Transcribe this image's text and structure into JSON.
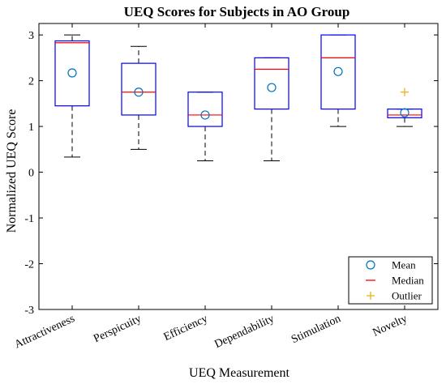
{
  "chart_data": {
    "type": "box",
    "title": "UEQ Scores for Subjects in AO Group",
    "xlabel": "UEQ Measurement",
    "ylabel": "Normalized UEQ Score",
    "ylim": [
      -3,
      3.25
    ],
    "yticks": [
      "-3",
      "-2",
      "-1",
      "0",
      "1",
      "2",
      "3"
    ],
    "ytick_values": [
      -3,
      -2,
      -1,
      0,
      1,
      2,
      3
    ],
    "categories": [
      "Attractiveness",
      "Perspicuity",
      "Efficiency",
      "Dependability",
      "Stimulation",
      "Novelty"
    ],
    "boxes": [
      {
        "category": "Attractiveness",
        "whisker_low": 0.33,
        "q1": 1.45,
        "median": 2.83,
        "q3": 2.87,
        "whisker_high": 3.0,
        "mean": 2.17,
        "outliers": []
      },
      {
        "category": "Perspicuity",
        "whisker_low": 0.5,
        "q1": 1.25,
        "median": 1.75,
        "q3": 2.38,
        "whisker_high": 2.75,
        "mean": 1.75,
        "outliers": []
      },
      {
        "category": "Efficiency",
        "whisker_low": 0.25,
        "q1": 1.0,
        "median": 1.25,
        "q3": 1.75,
        "whisker_high": 1.75,
        "mean": 1.25,
        "outliers": []
      },
      {
        "category": "Dependability",
        "whisker_low": 0.25,
        "q1": 1.38,
        "median": 2.25,
        "q3": 2.5,
        "whisker_high": 2.5,
        "mean": 1.85,
        "outliers": []
      },
      {
        "category": "Stimulation",
        "whisker_low": 1.0,
        "q1": 1.38,
        "median": 2.5,
        "q3": 3.0,
        "whisker_high": 3.0,
        "mean": 2.2,
        "outliers": []
      },
      {
        "category": "Novelty",
        "whisker_low": 1.0,
        "q1": 1.19,
        "median": 1.25,
        "q3": 1.38,
        "whisker_high": 1.38,
        "mean": 1.3,
        "outliers": [
          1.75
        ]
      }
    ],
    "legend": {
      "placement": "bottom-right",
      "entries": [
        {
          "label": "Mean",
          "marker": "circle",
          "color": "#0072BD"
        },
        {
          "label": "Median",
          "marker": "line",
          "color": "#FF0000"
        },
        {
          "label": "Outlier",
          "marker": "plus",
          "color": "#EDB120"
        }
      ]
    },
    "colors": {
      "box": "#0000FF",
      "median": "#FF0000",
      "mean": "#0072BD",
      "outlier": "#EDB120",
      "whisker": "#000000"
    },
    "grid": false
  }
}
